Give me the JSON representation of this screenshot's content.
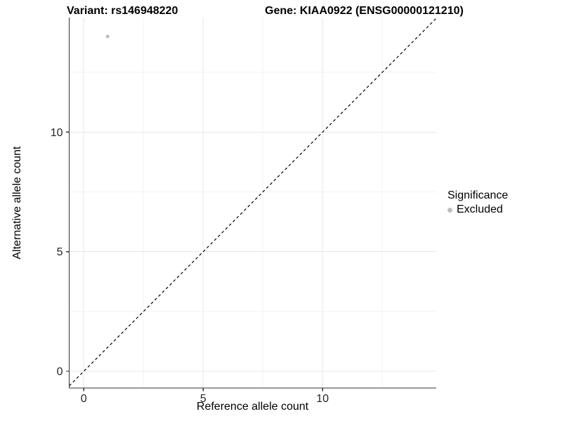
{
  "chart_data": {
    "type": "scatter",
    "title_left": "Variant: rs146948220",
    "title_right": "Gene: KIAA0922 (ENSG00000121210)",
    "xlabel": "Reference allele count",
    "ylabel": "Alternative allele count",
    "points": [
      {
        "x": 1,
        "y": 14,
        "significance": "Excluded"
      }
    ],
    "x_ticks": [
      0,
      5,
      10
    ],
    "y_ticks": [
      0,
      5,
      10
    ],
    "x_minor_ticks": [
      2.5,
      7.5,
      12.5
    ],
    "y_minor_ticks": [
      2.5,
      7.5,
      12.5
    ],
    "xlim": [
      -0.61,
      14.76
    ],
    "ylim": [
      -0.7,
      14.79
    ],
    "grid": true,
    "identity_line": {
      "slope": 1,
      "intercept": 0,
      "style": "dashed"
    },
    "legend": {
      "title": "Significance",
      "position": "right",
      "items": [
        {
          "label": "Excluded",
          "color": "#bebebe"
        }
      ]
    },
    "colors": {
      "point": "#bebebe",
      "grid_major": "#e7e7e7",
      "grid_minor": "#f3f3f3",
      "axis_line": "#333333",
      "tick_mark": "#333333",
      "dashed_line": "#000000"
    }
  }
}
